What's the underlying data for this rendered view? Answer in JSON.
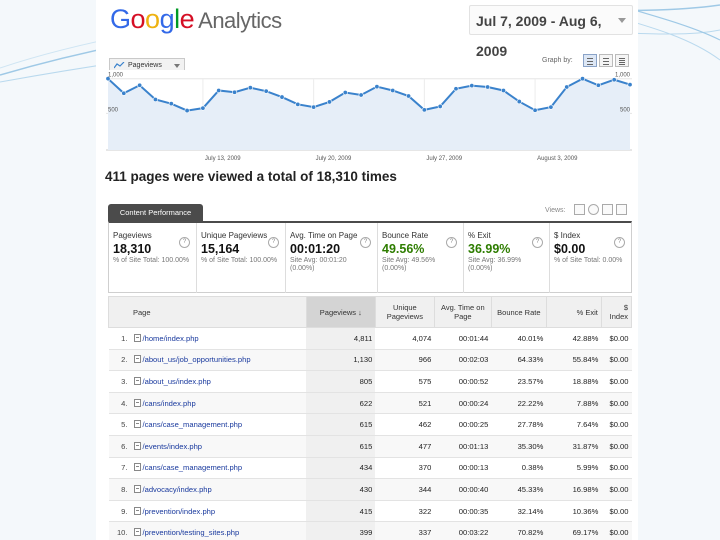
{
  "header": {
    "logo_google": [
      "G",
      "o",
      "o",
      "g",
      "l",
      "e"
    ],
    "logo_analytics": "Analytics",
    "date_range": "Jul 7, 2009 - Aug 6, 2009"
  },
  "graph_controls": {
    "metric": "Pageviews",
    "graph_by_label": "Graph by:",
    "graph_by_options": [
      "day-icon",
      "week-icon",
      "month-icon"
    ]
  },
  "chart_data": {
    "type": "area",
    "series": [
      {
        "name": "Pageviews",
        "values": [
          1000,
          790,
          905,
          700,
          640,
          540,
          575,
          830,
          805,
          870,
          820,
          735,
          630,
          590,
          665,
          800,
          765,
          885,
          830,
          750,
          550,
          600,
          855,
          900,
          880,
          830,
          670,
          545,
          590,
          880,
          1000,
          905,
          985,
          915
        ]
      }
    ],
    "y_ticks": [
      "1,000",
      "500"
    ],
    "y_ticks_right": [
      "1,000",
      "500"
    ],
    "x_ticks": [
      "July 13, 2009",
      "July 20, 2009",
      "July 27, 2009",
      "August 3, 2009"
    ],
    "ylim": [
      0,
      1000
    ],
    "colors": {
      "line": "#3a82cc",
      "fill": "#e6eef8"
    }
  },
  "summary_text": "411 pages were viewed a total of 18,310 times",
  "content_tab": "Content Performance",
  "views_label": "Views:",
  "metrics": [
    {
      "label": "Pageviews",
      "value": "18,310",
      "sub": "% of Site Total: 100.00%"
    },
    {
      "label": "Unique Pageviews",
      "value": "15,164",
      "sub": "% of Site Total: 100.00%"
    },
    {
      "label": "Avg. Time on Page",
      "value": "00:01:20",
      "sub": "Site Avg: 00:01:20 (0.00%)"
    },
    {
      "label": "Bounce Rate",
      "value": "49.56%",
      "sub": "Site Avg: 49.56% (0.00%)"
    },
    {
      "label": "% Exit",
      "value": "36.99%",
      "sub": "Site Avg: 36.99% (0.00%)"
    },
    {
      "label": "$ Index",
      "value": "$0.00",
      "sub": "% of Site Total: 0.00%"
    }
  ],
  "table": {
    "headers": [
      "Page",
      "Pageviews ↓",
      "Unique Pageviews",
      "Avg. Time on Page",
      "Bounce Rate",
      "% Exit",
      "$ Index"
    ],
    "rows": [
      {
        "n": "1.",
        "page": "/home/index.php",
        "pv": "4,811",
        "upv": "4,074",
        "time": "00:01:44",
        "bounce": "40.01%",
        "exit": "42.88%",
        "idx": "$0.00"
      },
      {
        "n": "2.",
        "page": "/about_us/job_opportunities.php",
        "pv": "1,130",
        "upv": "966",
        "time": "00:02:03",
        "bounce": "64.33%",
        "exit": "55.84%",
        "idx": "$0.00"
      },
      {
        "n": "3.",
        "page": "/about_us/index.php",
        "pv": "805",
        "upv": "575",
        "time": "00:00:52",
        "bounce": "23.57%",
        "exit": "18.88%",
        "idx": "$0.00"
      },
      {
        "n": "4.",
        "page": "/cans/index.php",
        "pv": "622",
        "upv": "521",
        "time": "00:00:24",
        "bounce": "22.22%",
        "exit": "7.88%",
        "idx": "$0.00"
      },
      {
        "n": "5.",
        "page": "/cans/case_management.php",
        "pv": "615",
        "upv": "462",
        "time": "00:00:25",
        "bounce": "27.78%",
        "exit": "7.64%",
        "idx": "$0.00"
      },
      {
        "n": "6.",
        "page": "/events/index.php",
        "pv": "615",
        "upv": "477",
        "time": "00:01:13",
        "bounce": "35.30%",
        "exit": "31.87%",
        "idx": "$0.00"
      },
      {
        "n": "7.",
        "page": "/cans/case_management.php",
        "pv": "434",
        "upv": "370",
        "time": "00:00:13",
        "bounce": "0.38%",
        "exit": "5.99%",
        "idx": "$0.00"
      },
      {
        "n": "8.",
        "page": "/advocacy/index.php",
        "pv": "430",
        "upv": "344",
        "time": "00:00:40",
        "bounce": "45.33%",
        "exit": "16.98%",
        "idx": "$0.00"
      },
      {
        "n": "9.",
        "page": "/prevention/index.php",
        "pv": "415",
        "upv": "322",
        "time": "00:00:35",
        "bounce": "32.14%",
        "exit": "10.36%",
        "idx": "$0.00"
      },
      {
        "n": "10.",
        "page": "/prevention/testing_sites.php",
        "pv": "399",
        "upv": "337",
        "time": "00:03:22",
        "bounce": "70.82%",
        "exit": "69.17%",
        "idx": "$0.00"
      }
    ]
  }
}
